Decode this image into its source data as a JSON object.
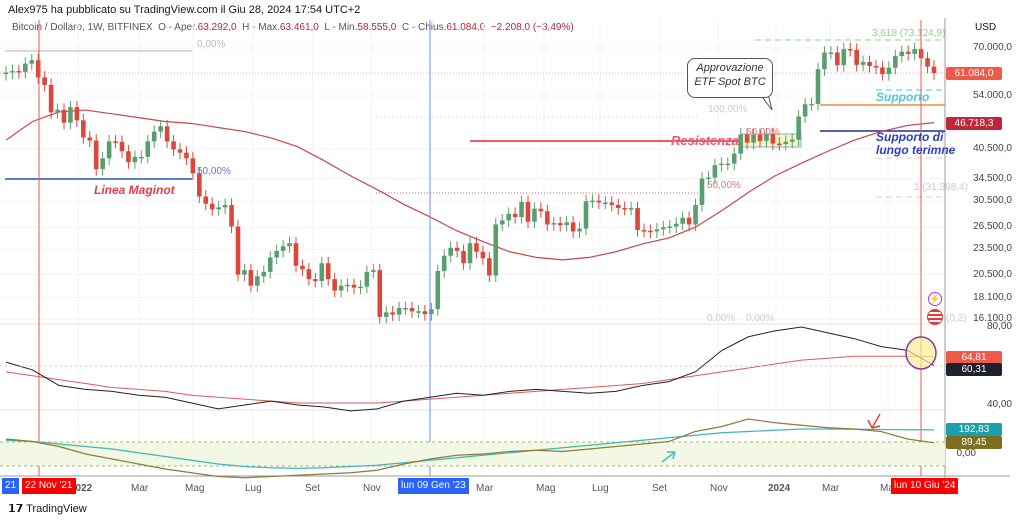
{
  "header": {
    "publisher": "Alex975 ha pubblicato su TradingView.com il Giu 28, 2024 17:54 UTC+2",
    "symbol": "Bitcoin / Dollaro, 1W, BITFINEX",
    "open_label": "O - Aper.",
    "open": "63.292,0",
    "high_label": "H - Max.",
    "high": "63.461,0",
    "low_label": "L - Min.",
    "low": "58.555,0",
    "close_label": "C - Chius.",
    "close": "61.084,0",
    "change": "−2.208,0 (−3,49%)"
  },
  "price_axis": {
    "currency": "USD",
    "labels": [
      "70.000,0",
      "54.000,0",
      "40.500,0",
      "34.500,0",
      "30.500,0",
      "26.500,0",
      "23.500,0",
      "20.500,0",
      "18.100,0",
      "16.100,0"
    ],
    "badges": {
      "last": "61.084,0",
      "ma": "46.718,3"
    }
  },
  "pane1_axis": {
    "labels": [
      "80,00",
      "40,00"
    ],
    "badges": {
      "ma": "64,81",
      "line": "60,31"
    }
  },
  "pane2_axis": {
    "labels": [
      "0,00"
    ],
    "badges": {
      "teal": "192,83",
      "olive": "89,45"
    }
  },
  "time_axis": {
    "labels": [
      "2022",
      "Mar",
      "Mag",
      "Lug",
      "Set",
      "Nov",
      "Mar",
      "Mag",
      "Lug",
      "Set",
      "Nov",
      "2024",
      "Mar",
      "Ma"
    ],
    "start_partial": "21",
    "cursor_1": "22 Nov '21",
    "cursor_2": "lun 09 Gen '23",
    "cursor_3": "lun 10 Giu '24"
  },
  "annotations": {
    "fib_top_left": "0,00%",
    "fib_mid_left": "50,00%",
    "maginot": "Linea Maginot",
    "resistenza": "Resistenza",
    "fib_50_box": "50,00%",
    "fib_100": "100,00%",
    "fib_50_low": "50,00%",
    "callout": "Approvazione ETF Spot BTC",
    "supporto": "Supporto",
    "supporto_lungo": "Supporto di lungo terimne",
    "fib_ext_top": "3,618 (73.124,9)",
    "fib_ext_1": "1 (31.398,4)",
    "fib_zero_a": "0,00%",
    "fib_zero_b": "0,00%",
    "fib_zero_c": "(0,2)"
  },
  "footer": {
    "brand": "TradingView"
  },
  "colors": {
    "up": "#5a9e6f",
    "down": "#d9483b",
    "ma": "#c8464a",
    "last": "#ee5a48",
    "ma_badge": "#c0283a",
    "teal": "#1b9fa8",
    "olive": "#7d6f1d",
    "blue": "#2454c7"
  },
  "chart_data": {
    "type": "candlestick",
    "title": "Bitcoin / Dollaro, 1W, BITFINEX",
    "x_start": "2021-10-18",
    "interval": "1W",
    "y_scale": "log",
    "ylim": [
      15500,
      76000
    ],
    "first_open": 60800,
    "closes": [
      61300,
      61800,
      61500,
      64300,
      65500,
      59700,
      57300,
      49400,
      50100,
      46700,
      50800,
      47300,
      43100,
      42400,
      36300,
      38500,
      42200,
      42100,
      40000,
      37700,
      38800,
      38800,
      42200,
      44500,
      45800,
      42200,
      40400,
      39700,
      38500,
      35500,
      31300,
      30100,
      29200,
      29500,
      29900,
      26600,
      20500,
      21000,
      19300,
      20300,
      20800,
      22500,
      23300,
      23900,
      24300,
      21500,
      21100,
      20000,
      19800,
      21800,
      20000,
      18800,
      19300,
      19400,
      19100,
      19200,
      20800,
      21000,
      16300,
      16700,
      16500,
      17100,
      17100,
      16800,
      16800,
      16550,
      17000,
      20900,
      22700,
      23700,
      23300,
      21800,
      24300,
      23200,
      22400,
      20400,
      26900,
      27500,
      28500,
      28000,
      30400,
      27300,
      29300,
      28900,
      26900,
      27100,
      26800,
      27200,
      25900,
      26300,
      30500,
      30600,
      30300,
      30300,
      29900,
      29400,
      29300,
      29400,
      26100,
      26000,
      25900,
      26200,
      26500,
      26600,
      27000,
      27900,
      26900,
      29900,
      34500,
      34700,
      37100,
      37400,
      37400,
      39500,
      43800,
      41900,
      43700,
      42300,
      43900,
      41700,
      41600,
      42100,
      42600,
      48300,
      51600,
      51700,
      62400,
      68300,
      68300,
      63800,
      69600,
      69300,
      63900,
      64900,
      63500,
      63000,
      60800,
      62900,
      67000,
      68600,
      67800,
      69600,
      66200,
      63292,
      61084
    ],
    "moving_average": [
      42500,
      47000,
      49500,
      50000,
      49000,
      48000,
      47000,
      46500,
      45500,
      44500,
      43000,
      41000,
      38000,
      35000,
      32500,
      30000,
      28000,
      26000,
      24500,
      23200,
      22500,
      22200,
      22500,
      23200,
      24200,
      25000,
      26500,
      29000,
      32000,
      35000,
      37500,
      40000,
      42500,
      44500,
      46000,
      46718.3
    ],
    "oscillator_1": {
      "line": [
        62,
        58,
        50,
        48,
        47,
        45,
        44,
        41,
        38,
        40,
        42,
        40,
        39,
        37,
        38,
        42,
        44,
        46,
        45,
        47,
        48,
        47,
        46,
        47,
        50,
        52,
        57,
        68,
        75,
        78,
        80,
        77,
        74,
        70,
        68,
        60.31
      ],
      "ma": [
        57,
        55,
        53,
        51,
        49,
        48,
        47,
        45,
        44,
        43,
        42,
        41,
        41,
        41,
        41,
        42,
        43,
        44,
        45,
        46,
        47,
        48,
        49,
        50,
        51,
        53,
        55,
        57,
        59,
        61,
        63,
        64,
        65,
        65,
        65,
        64.81
      ],
      "ylim": [
        40,
        80
      ]
    },
    "oscillator_2": {
      "olive": [
        120,
        100,
        60,
        0,
        -40,
        -80,
        -120,
        -150,
        -180,
        -190,
        -180,
        -170,
        -160,
        -150,
        -130,
        -80,
        -40,
        -10,
        0,
        20,
        30,
        20,
        40,
        60,
        80,
        100,
        180,
        220,
        280,
        250,
        230,
        210,
        200,
        180,
        120,
        89.45
      ],
      "teal": [
        110,
        100,
        80,
        60,
        40,
        10,
        -20,
        -50,
        -80,
        -100,
        -110,
        -115,
        -110,
        -100,
        -90,
        -70,
        -50,
        -30,
        -10,
        10,
        30,
        50,
        70,
        90,
        110,
        130,
        150,
        170,
        180,
        190,
        200,
        200,
        198,
        196,
        194,
        192.83
      ]
    }
  }
}
